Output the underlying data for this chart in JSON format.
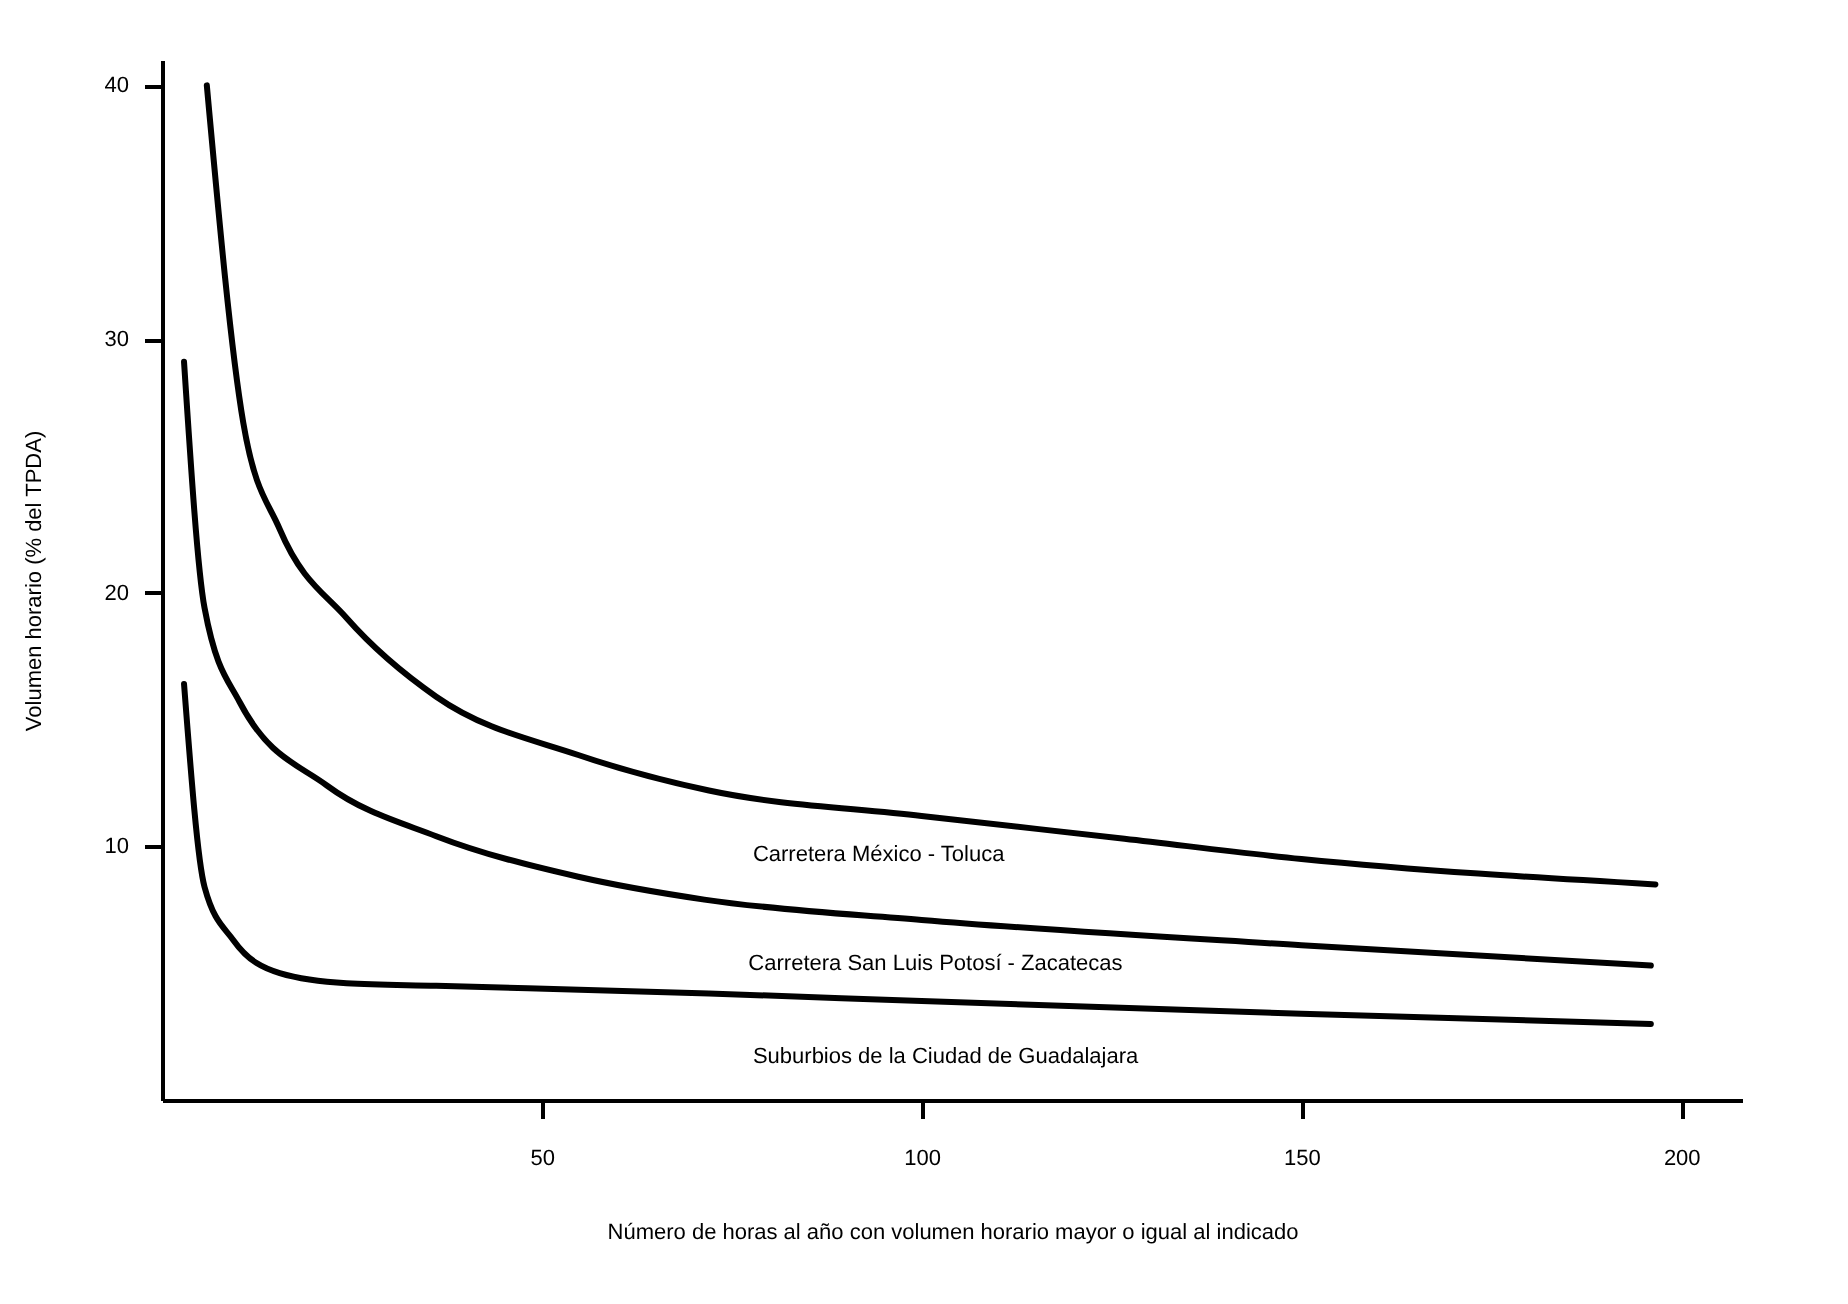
{
  "chart_data": {
    "type": "line",
    "xlabel": "Número de horas al año con volumen horario mayor o igual al indicado",
    "ylabel": "Volumen horario (% del TPDA)",
    "xlim": [
      0,
      208
    ],
    "ylim": [
      0,
      41
    ],
    "xticks": [
      50,
      100,
      150,
      200
    ],
    "yticks": [
      10,
      20,
      30,
      40
    ],
    "grid": false,
    "line_style": "solid",
    "series": [
      {
        "name": "Carretera México - Toluca",
        "color": "#000000",
        "x": [
          5.9,
          10.7,
          15.5,
          24.3,
          36.1,
          54.8,
          72,
          100,
          126.7,
          150,
          196.6
        ],
        "values": [
          40,
          26.7,
          22.5,
          19.0,
          15.9,
          13.6,
          12.2,
          11.2,
          10.3,
          9.5,
          8.5
        ]
      },
      {
        "name": "Carretera San Luis Potosí - Zacatecas",
        "color": "#000000",
        "x": [
          2.9,
          5.6,
          10.2,
          21.7,
          36.1,
          54.8,
          71.4,
          100,
          150,
          196
        ],
        "values": [
          29.1,
          19.4,
          15.7,
          12.4,
          10.4,
          8.8,
          7.9,
          7.1,
          6.1,
          5.3
        ]
      },
      {
        "name": "Suburbios de la Ciudad de Guadalajara",
        "color": "#000000",
        "x": [
          2.9,
          5.6,
          9.4,
          15.5,
          24.3,
          36.1,
          72,
          100,
          150,
          196
        ],
        "values": [
          16.4,
          8.4,
          6.3,
          5.0,
          4.6,
          4.5,
          4.2,
          3.9,
          3.4,
          3.0
        ]
      }
    ]
  }
}
